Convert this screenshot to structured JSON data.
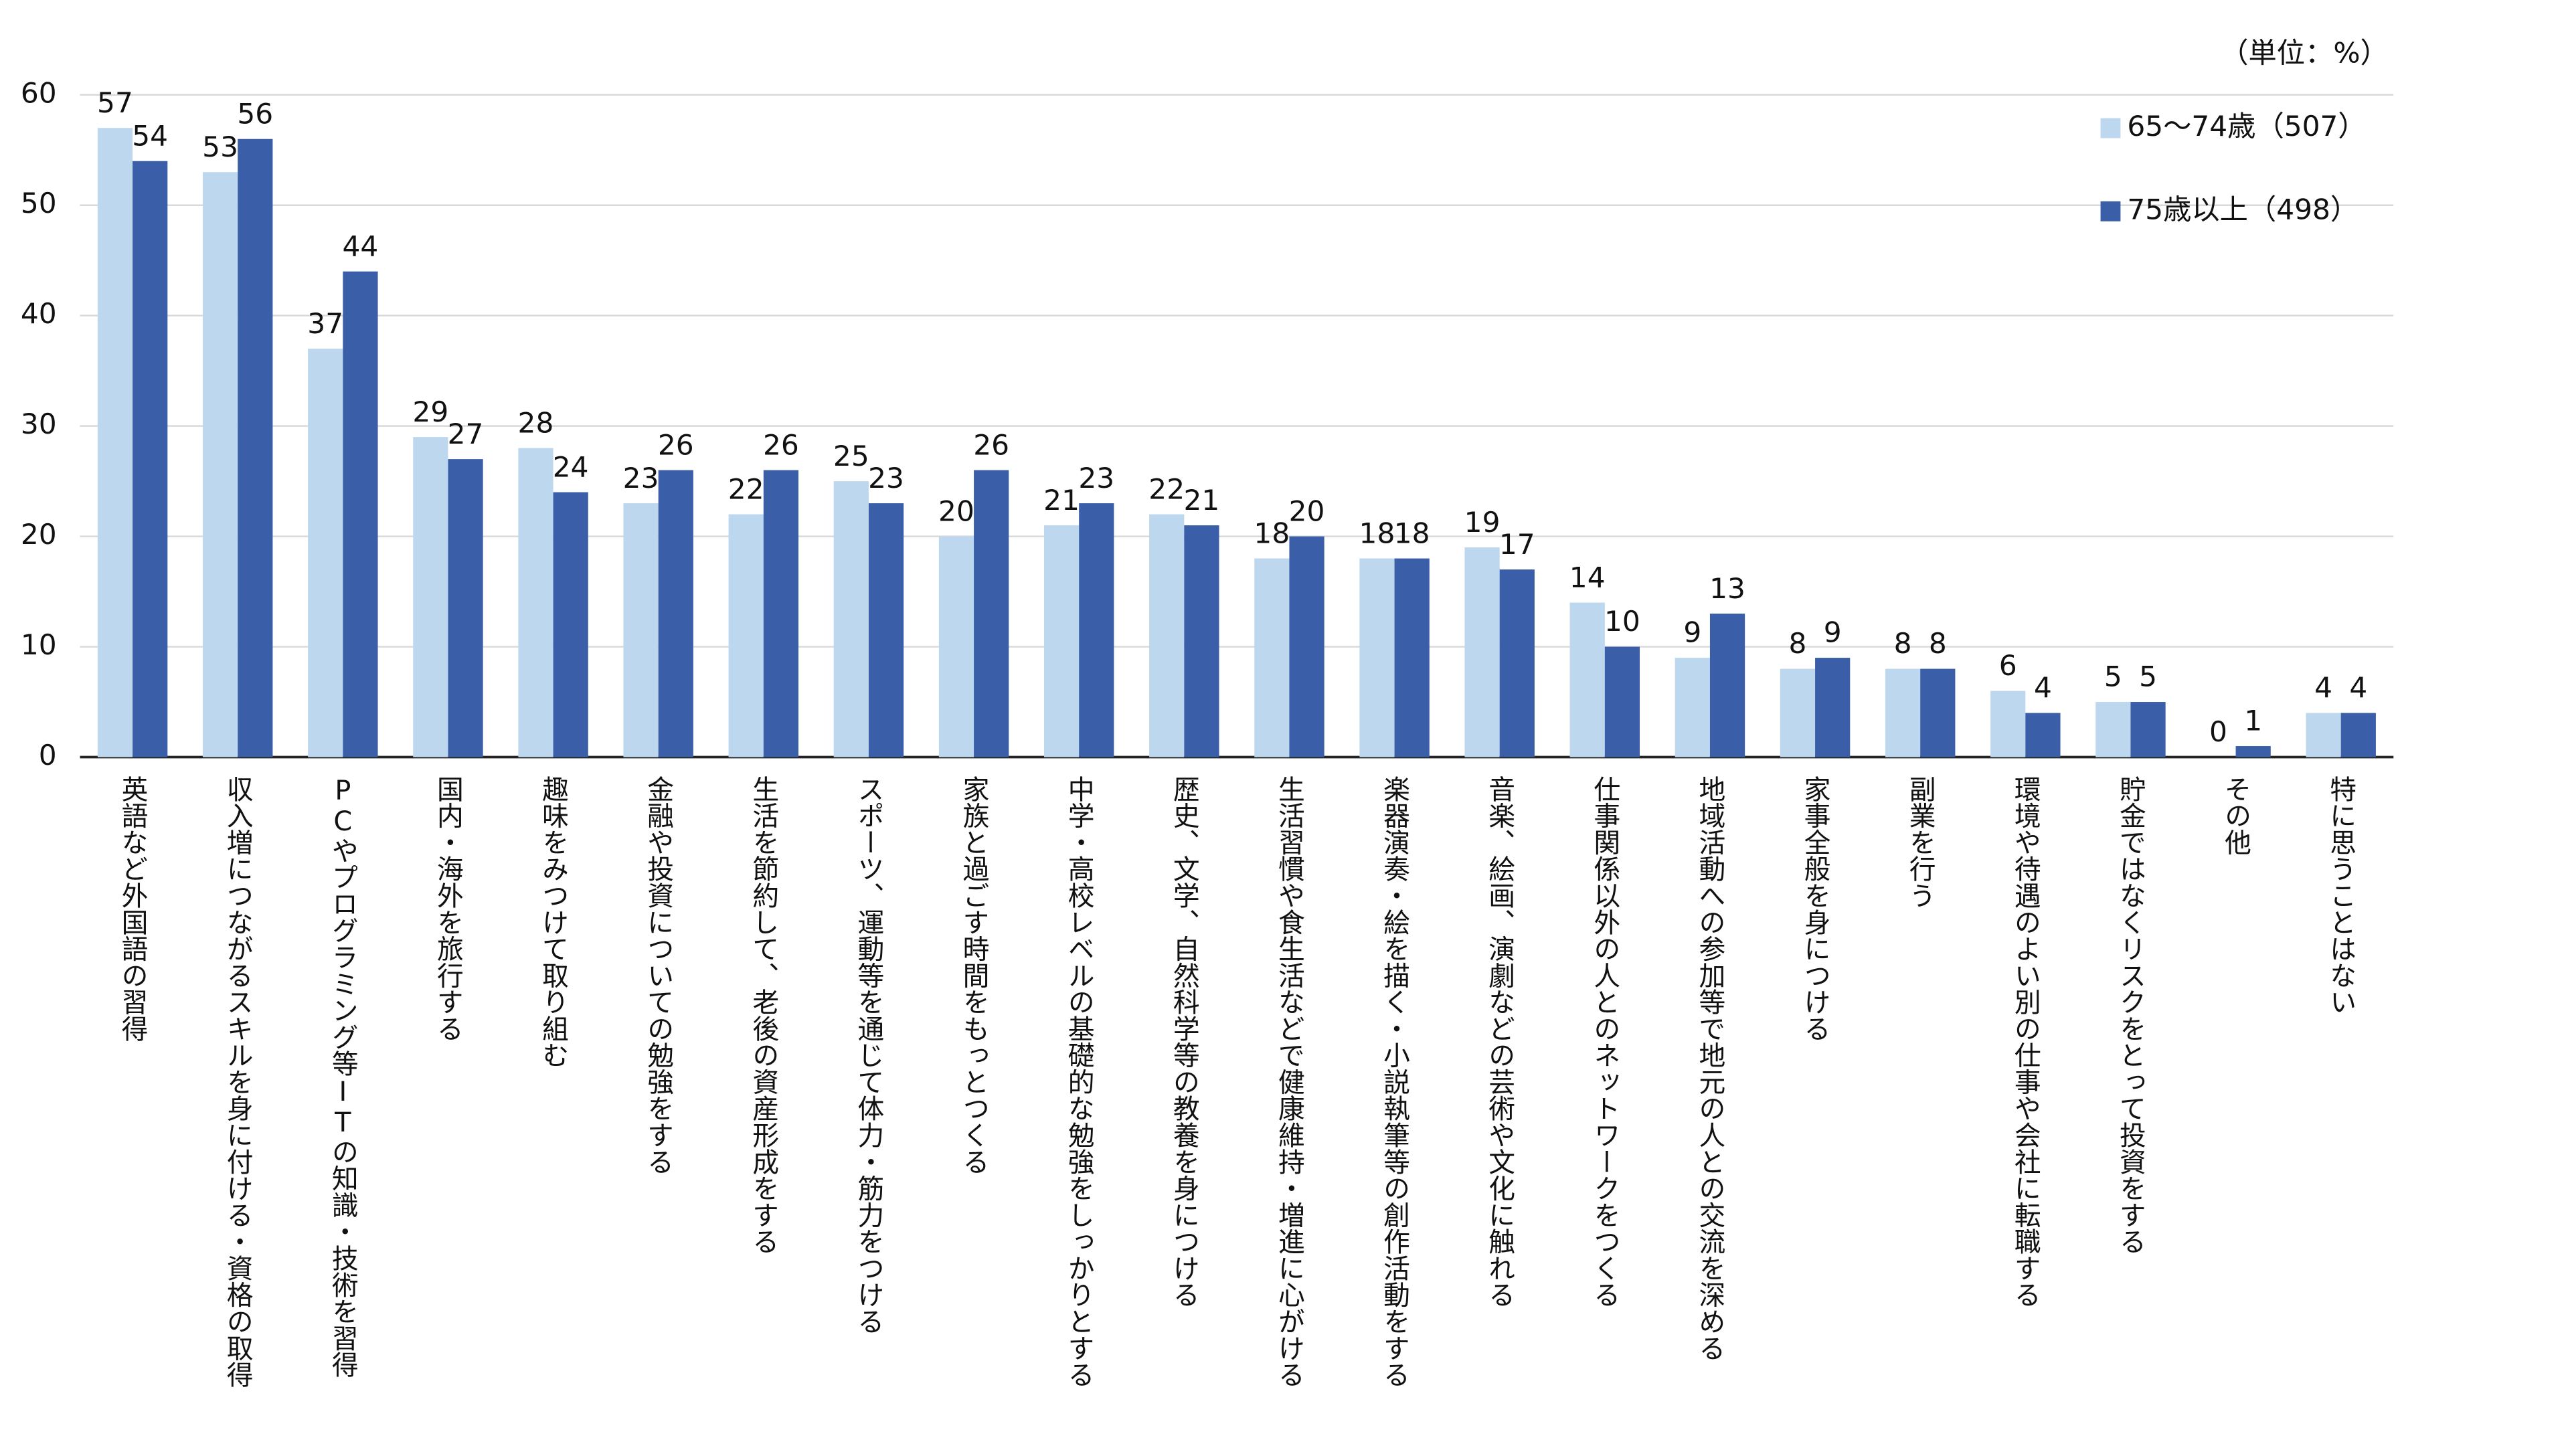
{
  "chart_data": {
    "type": "bar",
    "annotation": "（単位：%）",
    "categories": [
      "英語など外国語の習得",
      "収入増につながるスキルを身に付ける・資格の取得",
      "PCやプログラミング等ITの知識・技術を習得",
      "国内・海外を旅行する",
      "趣味をみつけて取り組む",
      "金融や投資についての勉強をする",
      "生活を節約して、老後の資産形成をする",
      "スポーツ、運動等を通じて体力・筋力をつける",
      "家族と過ごす時間をもっとつくる",
      "中学・高校レベルの基礎的な勉強をしっかりとする",
      "歴史、文学、自然科学等の教養を身につける",
      "生活習慣や食生活などで健康維持・増進に心がける",
      "楽器演奏・絵を描く・小説執筆等の創作活動をする",
      "音楽、絵画、演劇などの芸術や文化に触れる",
      "仕事関係以外の人とのネットワークをつくる",
      "地域活動への参加等で地元の人との交流を深める",
      "家事全般を身につける",
      "副業を行う",
      "環境や待遇のよい別の仕事や会社に転職する",
      "貯金ではなくリスクをとって投資をする",
      "その他",
      "特に思うことはない"
    ],
    "series": [
      {
        "name": "65～74歳（507）",
        "color": "#bdd7ee",
        "values": [
          57,
          53,
          37,
          29,
          28,
          23,
          22,
          25,
          20,
          21,
          22,
          18,
          18,
          19,
          14,
          9,
          8,
          8,
          6,
          5,
          0,
          4
        ]
      },
      {
        "name": "75歳以上（498）",
        "color": "#3a5fa8",
        "values": [
          54,
          56,
          44,
          27,
          24,
          26,
          26,
          23,
          26,
          23,
          21,
          20,
          18,
          17,
          10,
          13,
          9,
          8,
          4,
          5,
          1,
          4
        ]
      }
    ],
    "ylim": [
      0,
      60
    ],
    "yticks": [
      0,
      10,
      20,
      30,
      40,
      50,
      60
    ],
    "grid": true
  }
}
